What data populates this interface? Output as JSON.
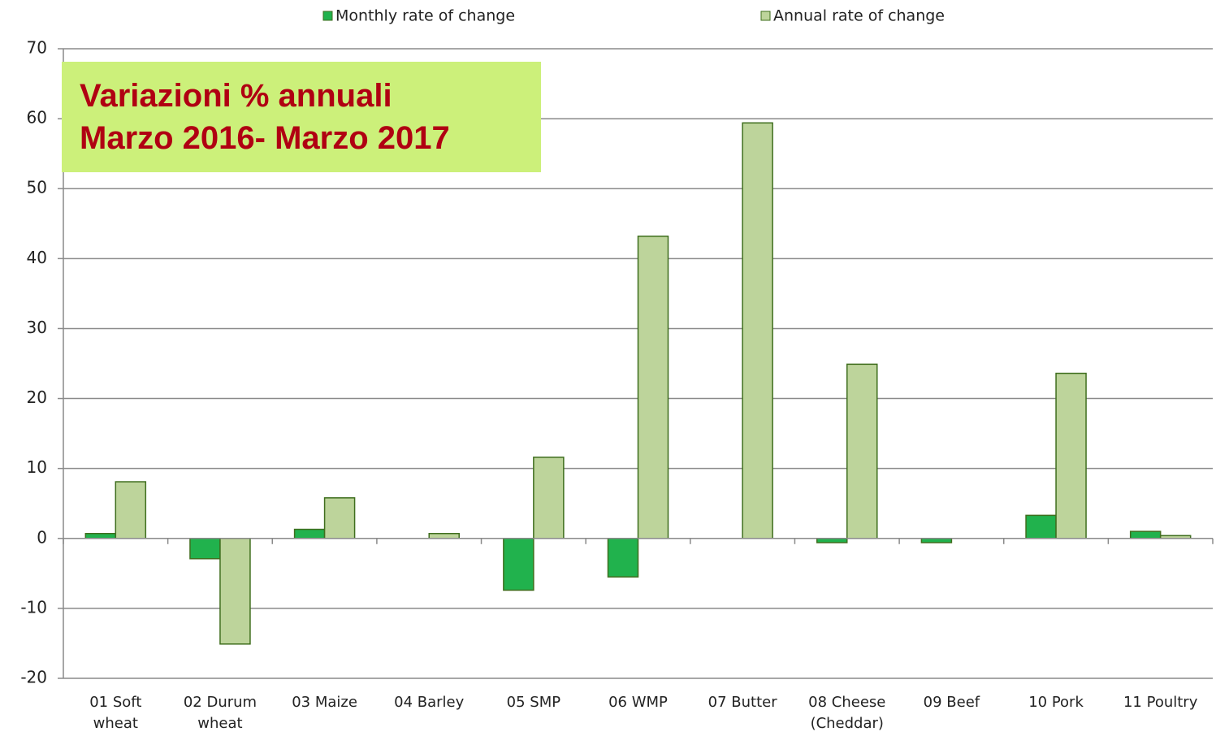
{
  "chart_data": {
    "type": "bar",
    "title": "Variazioni % annuali",
    "subtitle": "Marzo 2016- Marzo 2017",
    "categories": [
      "01 Soft wheat",
      "02 Durum wheat",
      "03 Maize",
      "04 Barley",
      "05 SMP",
      "06 WMP",
      "07 Butter",
      "08 Cheese (Cheddar)",
      "09 Beef",
      "10 Pork",
      "11 Poultry"
    ],
    "series": [
      {
        "name": "Monthly rate of change",
        "color": "#21b24d",
        "values": [
          0.7,
          -2.9,
          1.3,
          0,
          -7.4,
          -5.5,
          0,
          -0.6,
          -0.6,
          3.3,
          1.0
        ]
      },
      {
        "name": "Annual rate of change",
        "color": "#bdd49b",
        "values": [
          8.1,
          -15.1,
          5.8,
          0.7,
          11.6,
          43.2,
          59.4,
          24.9,
          0,
          23.6,
          0.4
        ]
      }
    ],
    "ylim": [
      -20,
      70
    ],
    "yticks": [
      -20,
      -10,
      0,
      10,
      20,
      30,
      40,
      50,
      60,
      70
    ],
    "grid": true,
    "legend": "top"
  }
}
